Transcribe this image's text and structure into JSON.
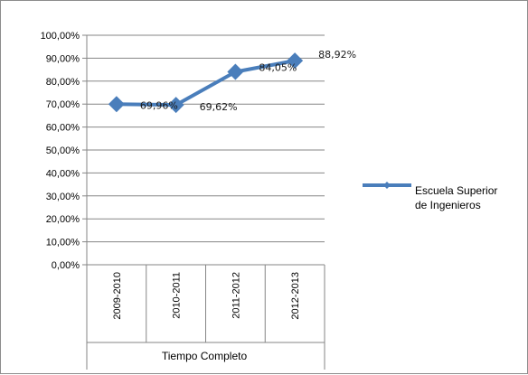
{
  "chart_data": {
    "type": "line",
    "categories": [
      "2009-2010",
      "2010-2011",
      "2011-2012",
      "2012-2013"
    ],
    "category_group": "Tiempo Completo",
    "series": [
      {
        "name": "Escuela Superior de Ingenieros",
        "legend_lines": [
          "Escuela Superior",
          "de Ingenieros"
        ],
        "values": [
          69.96,
          69.62,
          84.05,
          88.92
        ],
        "labels": [
          "69,96%",
          "69,62%",
          "84,05%",
          "88,92%"
        ],
        "color": "#4a7ebb",
        "marker": "diamond"
      }
    ],
    "yticks": [
      "0,00%",
      "10,00%",
      "20,00%",
      "30,00%",
      "40,00%",
      "50,00%",
      "60,00%",
      "70,00%",
      "80,00%",
      "90,00%",
      "100,00%"
    ],
    "ylim": [
      0,
      100
    ],
    "grid": true,
    "legend_position": "right"
  }
}
